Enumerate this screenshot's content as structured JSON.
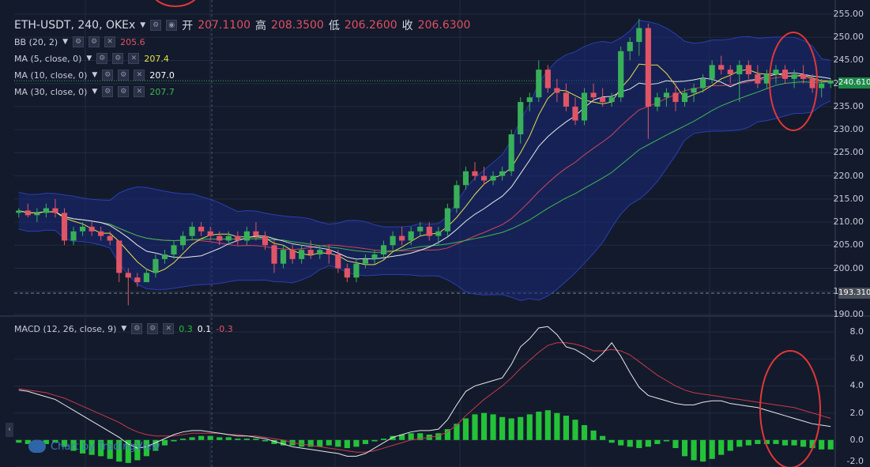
{
  "header": {
    "symbol": "ETH-USDT, 240, OKEx",
    "open_label": "开",
    "open": "207.1100",
    "high_label": "高",
    "high": "208.3500",
    "low_label": "低",
    "low": "206.2600",
    "close_label": "收",
    "close": "206.6300"
  },
  "indicators": {
    "bb": {
      "label": "BB (20, 2)",
      "value": "205.6"
    },
    "ma5": {
      "label": "MA (5, close, 0)",
      "value": "207.4",
      "color": "#e5e04a"
    },
    "ma10": {
      "label": "MA (10, close, 0)",
      "value": "207.0",
      "color": "#e8e8e8"
    },
    "ma30": {
      "label": "MA (30, close, 0)",
      "value": "207.7",
      "color": "#3fb84f"
    },
    "macd": {
      "label": "MACD (12, 26, close, 9)",
      "hist": "0.3",
      "macd": "0.1",
      "signal": "-0.3"
    }
  },
  "branding": {
    "text": "Chart by TradingView"
  },
  "price_axis": {
    "ticks": [
      "255.00",
      "250.00",
      "245.00",
      "240.00",
      "235.00",
      "230.00",
      "225.00",
      "220.00",
      "215.00",
      "210.00",
      "205.00",
      "200.00",
      "195.00",
      "190.00"
    ],
    "last_price": "240.610",
    "low_marker": "193.310"
  },
  "macd_axis": {
    "ticks": [
      "8.0",
      "6.0",
      "4.0",
      "2.0",
      "0.0",
      "-2.0"
    ]
  },
  "colors": {
    "up": "#38b05a",
    "down": "#e05565",
    "bb_fill": "#1a2a7a",
    "macd_hist": "#24c238",
    "highlight": "#e03838"
  },
  "chart_data": [
    {
      "type": "candlestick",
      "title": "ETH-USDT, 240, OKEx",
      "ylim": [
        190,
        255
      ],
      "candles": [
        [
          212,
          213,
          211,
          212.5
        ],
        [
          212.5,
          214,
          211,
          211.5
        ],
        [
          211.5,
          213,
          210,
          212
        ],
        [
          212,
          214,
          211,
          213
        ],
        [
          213,
          215,
          211,
          212
        ],
        [
          212,
          213,
          205,
          206
        ],
        [
          206,
          209,
          205,
          208
        ],
        [
          208,
          210,
          207,
          209
        ],
        [
          209,
          210,
          207,
          208
        ],
        [
          208,
          209,
          206,
          207
        ],
        [
          207,
          208,
          205,
          206
        ],
        [
          206,
          206,
          197,
          199
        ],
        [
          199,
          200,
          192,
          198
        ],
        [
          198,
          199,
          196,
          197
        ],
        [
          197,
          200,
          197,
          199
        ],
        [
          199,
          203,
          198,
          202
        ],
        [
          202,
          204,
          201,
          203
        ],
        [
          203,
          206,
          202,
          205
        ],
        [
          205,
          208,
          204,
          207
        ],
        [
          207,
          210,
          206,
          209
        ],
        [
          209,
          210,
          207,
          208
        ],
        [
          208,
          209,
          206,
          207
        ],
        [
          207,
          208,
          205,
          206
        ],
        [
          206,
          208,
          205,
          207
        ],
        [
          207,
          208,
          205,
          206
        ],
        [
          206,
          209,
          205,
          208
        ],
        [
          208,
          210,
          206,
          207
        ],
        [
          207,
          208,
          204,
          205
        ],
        [
          205,
          206,
          199,
          201
        ],
        [
          201,
          205,
          200,
          204
        ],
        [
          204,
          205,
          201,
          202
        ],
        [
          202,
          205,
          201,
          204
        ],
        [
          204,
          206,
          202,
          203
        ],
        [
          203,
          205,
          202,
          204
        ],
        [
          204,
          205,
          201,
          203
        ],
        [
          203,
          204,
          199,
          200
        ],
        [
          200,
          201,
          197,
          198
        ],
        [
          198,
          202,
          197,
          201
        ],
        [
          201,
          203,
          200,
          202
        ],
        [
          202,
          204,
          201,
          203
        ],
        [
          203,
          206,
          202,
          205
        ],
        [
          205,
          208,
          204,
          207
        ],
        [
          207,
          209,
          205,
          206
        ],
        [
          206,
          209,
          205,
          208
        ],
        [
          208,
          210,
          207,
          209
        ],
        [
          209,
          210,
          206,
          207
        ],
        [
          207,
          209,
          205,
          208
        ],
        [
          208,
          214,
          207,
          213
        ],
        [
          213,
          219,
          212,
          218
        ],
        [
          218,
          222,
          217,
          221
        ],
        [
          221,
          223,
          219,
          220
        ],
        [
          220,
          222,
          218,
          219
        ],
        [
          219,
          221,
          218,
          220
        ],
        [
          220,
          222,
          219,
          221
        ],
        [
          221,
          230,
          220,
          229
        ],
        [
          229,
          237,
          227,
          236
        ],
        [
          236,
          238,
          234,
          237
        ],
        [
          237,
          245,
          236,
          243
        ],
        [
          243,
          244,
          238,
          239
        ],
        [
          239,
          241,
          236,
          238
        ],
        [
          238,
          240,
          234,
          235
        ],
        [
          235,
          237,
          231,
          232
        ],
        [
          232,
          239,
          231,
          238
        ],
        [
          238,
          240,
          236,
          237
        ],
        [
          237,
          239,
          235,
          236
        ],
        [
          236,
          238,
          235,
          237
        ],
        [
          237,
          248,
          236,
          247
        ],
        [
          247,
          250,
          245,
          249
        ],
        [
          249,
          254,
          246,
          252
        ],
        [
          252,
          253,
          228,
          235
        ],
        [
          235,
          238,
          234,
          237
        ],
        [
          237,
          239,
          235,
          238
        ],
        [
          238,
          240,
          234,
          236
        ],
        [
          236,
          239,
          235,
          238
        ],
        [
          238,
          240,
          236,
          239
        ],
        [
          239,
          242,
          238,
          241
        ],
        [
          241,
          245,
          240,
          244
        ],
        [
          244,
          246,
          242,
          243
        ],
        [
          243,
          244,
          240,
          242
        ],
        [
          242,
          245,
          236,
          244
        ],
        [
          244,
          245,
          241,
          242
        ],
        [
          242,
          244,
          239,
          240
        ],
        [
          240,
          243,
          239,
          242
        ],
        [
          242,
          244,
          240,
          243
        ],
        [
          243,
          244,
          240,
          241
        ],
        [
          241,
          243,
          239,
          242
        ],
        [
          242,
          244,
          240,
          241
        ],
        [
          241,
          242,
          238,
          239
        ],
        [
          239,
          241,
          237,
          240
        ],
        [
          240,
          241,
          239,
          240.6
        ]
      ]
    },
    {
      "type": "bar",
      "title": "MACD (12, 26, close, 9)",
      "ylim": [
        -2,
        9
      ],
      "histogram": [
        -0.2,
        -0.3,
        -0.4,
        -0.3,
        -0.2,
        -0.5,
        -0.8,
        -1.0,
        -1.1,
        -1.2,
        -1.4,
        -1.6,
        -1.7,
        -1.5,
        -1.2,
        -0.8,
        -0.4,
        -0.1,
        0.1,
        0.2,
        0.3,
        0.3,
        0.2,
        0.2,
        0.1,
        0.1,
        0.1,
        -0.1,
        -0.3,
        -0.4,
        -0.4,
        -0.5,
        -0.5,
        -0.5,
        -0.4,
        -0.5,
        -0.6,
        -0.5,
        -0.3,
        -0.1,
        0.1,
        0.3,
        0.4,
        0.5,
        0.5,
        0.4,
        0.5,
        0.8,
        1.2,
        1.6,
        1.9,
        2.0,
        1.9,
        1.7,
        1.6,
        1.7,
        1.9,
        2.1,
        2.2,
        2.0,
        1.8,
        1.5,
        1.1,
        0.7,
        0.3,
        -0.2,
        -0.4,
        -0.5,
        -0.6,
        -0.5,
        -0.3,
        -0.1,
        -0.6,
        -1.2,
        -1.5,
        -1.6,
        -1.4,
        -1.1,
        -0.8,
        -0.5,
        -0.4,
        -0.3,
        -0.3,
        -0.3,
        -0.4,
        -0.4,
        -0.5,
        -0.6,
        -0.7,
        -0.7
      ],
      "macd": [
        3.7,
        3.6,
        3.4,
        3.2,
        3.0,
        2.6,
        2.2,
        1.8,
        1.4,
        1.0,
        0.6,
        0.2,
        -0.3,
        -0.6,
        -0.5,
        -0.2,
        0.1,
        0.4,
        0.6,
        0.7,
        0.7,
        0.6,
        0.5,
        0.4,
        0.3,
        0.3,
        0.2,
        0.1,
        -0.1,
        -0.3,
        -0.5,
        -0.6,
        -0.7,
        -0.8,
        -0.9,
        -1.0,
        -1.2,
        -1.2,
        -1.0,
        -0.6,
        -0.2,
        0.2,
        0.4,
        0.6,
        0.7,
        0.7,
        0.8,
        1.5,
        2.6,
        3.6,
        4.0,
        4.2,
        4.4,
        4.6,
        5.6,
        6.9,
        7.5,
        8.3,
        8.4,
        7.8,
        6.9,
        6.7,
        6.3,
        5.8,
        6.4,
        7.2,
        6.2,
        5.0,
        3.9,
        3.3,
        3.1,
        2.9,
        2.7,
        2.6,
        2.6,
        2.8,
        2.9,
        2.9,
        2.7,
        2.6,
        2.5,
        2.4,
        2.2,
        2.0,
        1.8,
        1.6,
        1.4,
        1.2,
        1.1,
        1.0
      ],
      "signal": [
        3.8,
        3.7,
        3.6,
        3.5,
        3.3,
        3.1,
        2.8,
        2.5,
        2.2,
        1.9,
        1.6,
        1.3,
        0.9,
        0.6,
        0.4,
        0.3,
        0.3,
        0.3,
        0.4,
        0.5,
        0.5,
        0.5,
        0.5,
        0.4,
        0.4,
        0.3,
        0.3,
        0.2,
        0.1,
        0.0,
        -0.2,
        -0.3,
        -0.4,
        -0.5,
        -0.6,
        -0.7,
        -0.8,
        -0.9,
        -0.9,
        -0.8,
        -0.6,
        -0.4,
        -0.2,
        0.0,
        0.1,
        0.2,
        0.3,
        0.6,
        1.1,
        1.8,
        2.4,
        3.0,
        3.5,
        4.0,
        4.6,
        5.3,
        5.9,
        6.5,
        7.0,
        7.2,
        7.2,
        7.1,
        6.9,
        6.6,
        6.6,
        6.7,
        6.6,
        6.3,
        5.8,
        5.3,
        4.8,
        4.4,
        4.0,
        3.7,
        3.5,
        3.4,
        3.3,
        3.2,
        3.1,
        3.0,
        2.9,
        2.8,
        2.7,
        2.6,
        2.5,
        2.4,
        2.2,
        2.0,
        1.8,
        1.6
      ]
    }
  ]
}
